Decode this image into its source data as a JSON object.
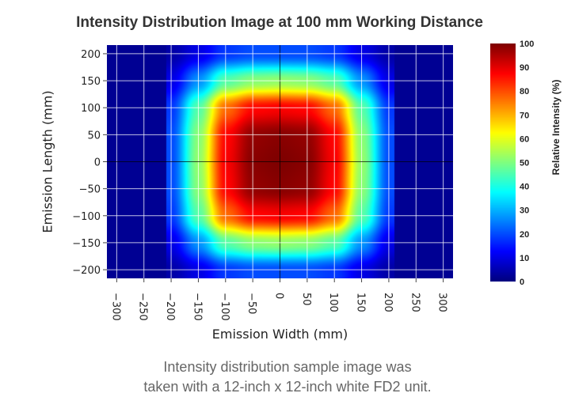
{
  "chart_data": {
    "type": "heatmap",
    "title": "Intensity Distribution Image at 100 mm Working Distance",
    "xlabel": "Emission Width (mm)",
    "ylabel": "Emission Length (mm)",
    "xlim": [
      -318,
      318
    ],
    "ylim": [
      -216,
      216
    ],
    "xticks": [
      -300,
      -250,
      -200,
      -150,
      -100,
      -50,
      0,
      50,
      100,
      150,
      200,
      250,
      300
    ],
    "yticks": [
      200,
      150,
      100,
      50,
      0,
      -50,
      -100,
      -150,
      -200
    ],
    "grid": true,
    "colormap": "jet",
    "colorbar": {
      "label": "Relative Intensity (%)",
      "range": [
        0,
        100
      ],
      "ticks": [
        100,
        90,
        80,
        70,
        60,
        50,
        40,
        30,
        20,
        10,
        0
      ]
    },
    "data_extent_x": [
      -210,
      210
    ],
    "x": [
      -200,
      -150,
      -100,
      -50,
      0,
      50,
      100,
      150,
      200
    ],
    "y": [
      200,
      150,
      100,
      50,
      0,
      -50,
      -100,
      -150,
      -200
    ],
    "z": [
      [
        4,
        10,
        18,
        20,
        20,
        20,
        18,
        10,
        4
      ],
      [
        10,
        27,
        46,
        51,
        52,
        51,
        46,
        27,
        10
      ],
      [
        18,
        46,
        77,
        87,
        88,
        87,
        77,
        46,
        18
      ],
      [
        20,
        51,
        87,
        98,
        99,
        98,
        87,
        51,
        20
      ],
      [
        20,
        52,
        88,
        99,
        100,
        99,
        88,
        52,
        20
      ],
      [
        20,
        51,
        87,
        98,
        99,
        98,
        87,
        51,
        20
      ],
      [
        18,
        46,
        77,
        87,
        88,
        87,
        77,
        46,
        18
      ],
      [
        10,
        27,
        46,
        51,
        52,
        51,
        46,
        27,
        10
      ],
      [
        4,
        10,
        18,
        20,
        20,
        20,
        18,
        10,
        4
      ]
    ],
    "background_value": 2
  },
  "caption": {
    "line1": "Intensity distribution sample image was",
    "line2": "taken with a 12-inch x 12-inch white FD2 unit."
  }
}
